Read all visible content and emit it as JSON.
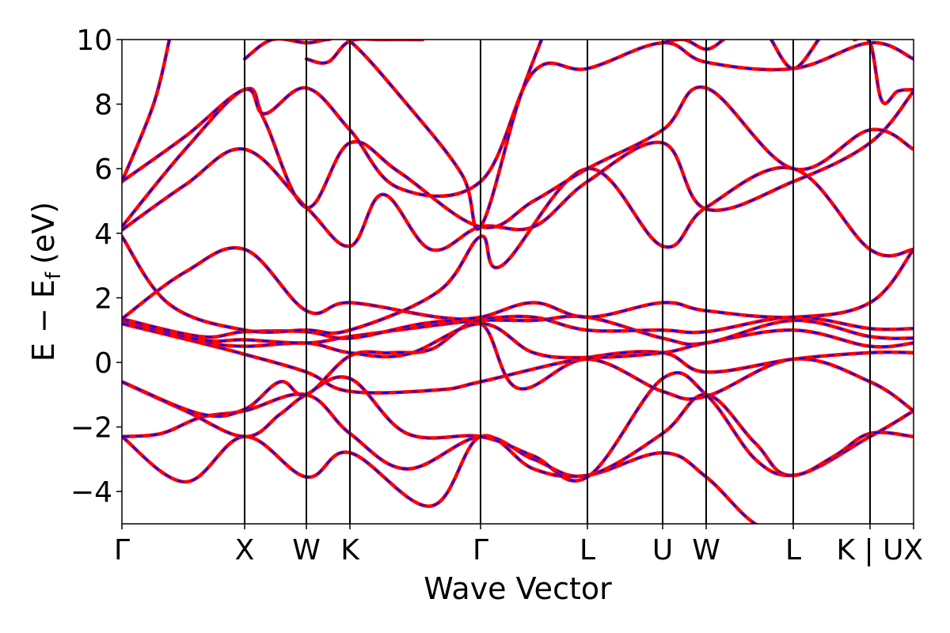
{
  "chart_data": {
    "type": "line",
    "title": "",
    "xlabel": "Wave Vector",
    "ylabel": "E − E",
    "ylabel_subscript": "f",
    "ylabel_unit": "(eV)",
    "ylim": [
      -5,
      10
    ],
    "yticks": [
      -4,
      -2,
      0,
      2,
      4,
      6,
      8,
      10
    ],
    "ytick_labels": [
      "−4",
      "−2",
      "0",
      "2",
      "4",
      "6",
      "8",
      "10"
    ],
    "xlim": [
      0,
      1
    ],
    "kpoints": [
      {
        "label": "Γ",
        "x": 0.0
      },
      {
        "label": "X",
        "x": 0.155
      },
      {
        "label": "W",
        "x": 0.233
      },
      {
        "label": "K",
        "x": 0.288
      },
      {
        "label": "Γ",
        "x": 0.453
      },
      {
        "label": "L",
        "x": 0.588
      },
      {
        "label": "U",
        "x": 0.683
      },
      {
        "label": "W",
        "x": 0.738
      },
      {
        "label": "L",
        "x": 0.848
      },
      {
        "label": "K | U",
        "x": 0.945
      },
      {
        "label": "X",
        "x": 1.0
      }
    ],
    "series_style": [
      {
        "color": "#ff0000",
        "dash": "solid"
      },
      {
        "color": "#0000ff",
        "dash": "dashed"
      }
    ],
    "bands": [
      {
        "x": [
          0.0,
          0.08,
          0.155,
          0.233,
          0.288,
          0.39,
          0.453,
          0.52,
          0.588,
          0.683,
          0.738,
          0.8,
          0.848,
          0.945,
          1.0
        ],
        "y": [
          -2.3,
          -3.7,
          -2.3,
          -3.55,
          -2.8,
          -4.45,
          -2.3,
          -3.3,
          -3.5,
          -2.8,
          -3.55,
          -5.0,
          -5.2,
          -5.2,
          -5.2
        ]
      },
      {
        "x": [
          0.0,
          0.05,
          0.1,
          0.155,
          0.233,
          0.288,
          0.36,
          0.453,
          0.52,
          0.588,
          0.683,
          0.738,
          0.8,
          0.848,
          0.945,
          1.0
        ],
        "y": [
          -2.3,
          -2.2,
          -1.7,
          -1.5,
          -1.0,
          -2.2,
          -3.3,
          -2.3,
          -3.0,
          -3.5,
          -2.2,
          -1.0,
          -2.5,
          -3.5,
          -2.3,
          -1.5
        ]
      },
      {
        "x": [
          0.0,
          0.08,
          0.155,
          0.2,
          0.233,
          0.288,
          0.36,
          0.453,
          0.52,
          0.588,
          0.683,
          0.738,
          0.8,
          0.848,
          0.9,
          0.945,
          1.0
        ],
        "y": [
          -0.6,
          -1.5,
          -2.3,
          -1.6,
          -1.0,
          -0.5,
          -2.2,
          -2.3,
          -2.9,
          -3.55,
          -0.5,
          -1.0,
          -3.0,
          -3.5,
          -2.9,
          -2.2,
          -2.3
        ]
      },
      {
        "x": [
          0.0,
          0.1,
          0.155,
          0.2,
          0.233,
          0.288,
          0.34,
          0.39,
          0.453,
          0.5,
          0.588,
          0.683,
          0.738,
          0.848,
          0.945,
          1.0
        ],
        "y": [
          -0.6,
          -1.6,
          -1.45,
          -0.6,
          -1.0,
          0.2,
          0.3,
          0.4,
          1.2,
          -0.8,
          0.1,
          -0.9,
          -1.05,
          0.1,
          -0.6,
          -1.5
        ]
      },
      {
        "x": [
          0.0,
          0.1,
          0.155,
          0.233,
          0.288,
          0.4,
          0.453,
          0.588,
          0.683,
          0.738,
          0.848,
          0.945,
          1.0
        ],
        "y": [
          1.2,
          0.6,
          0.25,
          -0.3,
          -0.9,
          -0.85,
          -0.6,
          0.15,
          0.3,
          -0.3,
          0.1,
          0.3,
          0.3
        ]
      },
      {
        "x": [
          0.0,
          0.1,
          0.155,
          0.233,
          0.288,
          0.36,
          0.453,
          0.52,
          0.588,
          0.683,
          0.738,
          0.848,
          0.945,
          1.0
        ],
        "y": [
          1.2,
          0.65,
          0.5,
          0.6,
          0.3,
          0.25,
          1.2,
          0.3,
          0.15,
          0.3,
          0.6,
          1.0,
          0.5,
          0.6
        ]
      },
      {
        "x": [
          0.0,
          0.1,
          0.155,
          0.233,
          0.288,
          0.38,
          0.453,
          0.52,
          0.588,
          0.683,
          0.738,
          0.848,
          0.945,
          1.0
        ],
        "y": [
          1.3,
          0.7,
          0.7,
          0.6,
          0.8,
          1.1,
          1.3,
          1.3,
          1.4,
          0.75,
          0.6,
          1.3,
          0.8,
          0.75
        ]
      },
      {
        "x": [
          0.0,
          0.1,
          0.155,
          0.233,
          0.288,
          0.38,
          0.453,
          0.52,
          0.588,
          0.683,
          0.738,
          0.848,
          0.945,
          1.0
        ],
        "y": [
          1.35,
          0.8,
          0.95,
          0.95,
          0.75,
          1.2,
          1.35,
          1.4,
          1.0,
          1.0,
          0.95,
          1.4,
          1.05,
          1.05
        ]
      },
      {
        "x": [
          0.0,
          0.08,
          0.155,
          0.233,
          0.288,
          0.4,
          0.453,
          0.52,
          0.588,
          0.683,
          0.738,
          0.848,
          0.945,
          1.0
        ],
        "y": [
          1.35,
          2.8,
          3.5,
          1.6,
          1.85,
          1.4,
          1.4,
          1.85,
          1.4,
          1.85,
          1.6,
          1.4,
          1.85,
          3.5
        ]
      },
      {
        "x": [
          0.0,
          0.06,
          0.155,
          0.233,
          0.288,
          0.4,
          0.453,
          0.48,
          0.588,
          0.683,
          0.738,
          0.848,
          0.945,
          1.0
        ],
        "y": [
          3.9,
          1.8,
          1.0,
          1.0,
          1.0,
          2.2,
          3.9,
          3.0,
          6.0,
          3.6,
          4.8,
          6.0,
          3.5,
          3.5
        ]
      },
      {
        "x": [
          0.0,
          0.08,
          0.155,
          0.233,
          0.288,
          0.33,
          0.39,
          0.453,
          0.52,
          0.588,
          0.683,
          0.738,
          0.848,
          0.945,
          1.0
        ],
        "y": [
          4.1,
          5.5,
          6.6,
          4.8,
          3.6,
          5.2,
          3.5,
          4.2,
          4.2,
          5.6,
          6.8,
          4.75,
          5.6,
          6.8,
          8.4
        ]
      },
      {
        "x": [
          0.0,
          0.08,
          0.155,
          0.18,
          0.233,
          0.288,
          0.35,
          0.453,
          0.52,
          0.588,
          0.683,
          0.738,
          0.848,
          0.945,
          1.0
        ],
        "y": [
          4.2,
          6.6,
          8.45,
          7.5,
          4.8,
          6.8,
          5.9,
          4.2,
          5.0,
          6.0,
          7.2,
          8.5,
          6.0,
          7.2,
          6.6
        ]
      },
      {
        "x": [
          0.0,
          0.08,
          0.155,
          0.18,
          0.233,
          0.288,
          0.35,
          0.453,
          0.52,
          0.588,
          0.683,
          0.738,
          0.848,
          0.945,
          1.0
        ],
        "y": [
          5.6,
          7.0,
          8.45,
          7.7,
          8.5,
          7.2,
          5.4,
          5.6,
          9.0,
          9.1,
          9.9,
          9.3,
          9.1,
          9.9,
          9.4
        ]
      },
      {
        "x": [
          0.0,
          0.04,
          0.06
        ],
        "y": [
          5.6,
          8.0,
          10.0
        ]
      },
      {
        "x": [
          0.155,
          0.19,
          0.233,
          0.26,
          0.288,
          0.36,
          0.43,
          0.453,
          0.5,
          0.53
        ],
        "y": [
          9.4,
          10.0,
          9.9,
          10.0,
          9.95,
          8.0,
          5.8,
          4.2,
          8.0,
          10.0
        ]
      },
      {
        "x": [
          0.233,
          0.26,
          0.288,
          0.33,
          0.37,
          0.38
        ],
        "y": [
          9.4,
          9.3,
          9.95,
          10.0,
          10.0,
          10.0
        ]
      },
      {
        "x": [
          0.683,
          0.71,
          0.738,
          0.76
        ],
        "y": [
          9.9,
          10.0,
          9.7,
          10.0
        ]
      },
      {
        "x": [
          0.82,
          0.848,
          0.88
        ],
        "y": [
          10.0,
          9.1,
          10.0
        ]
      },
      {
        "x": [
          0.925,
          0.945,
          0.96,
          0.98,
          1.0
        ],
        "y": [
          10.0,
          9.9,
          8.1,
          8.4,
          8.45
        ]
      }
    ]
  }
}
